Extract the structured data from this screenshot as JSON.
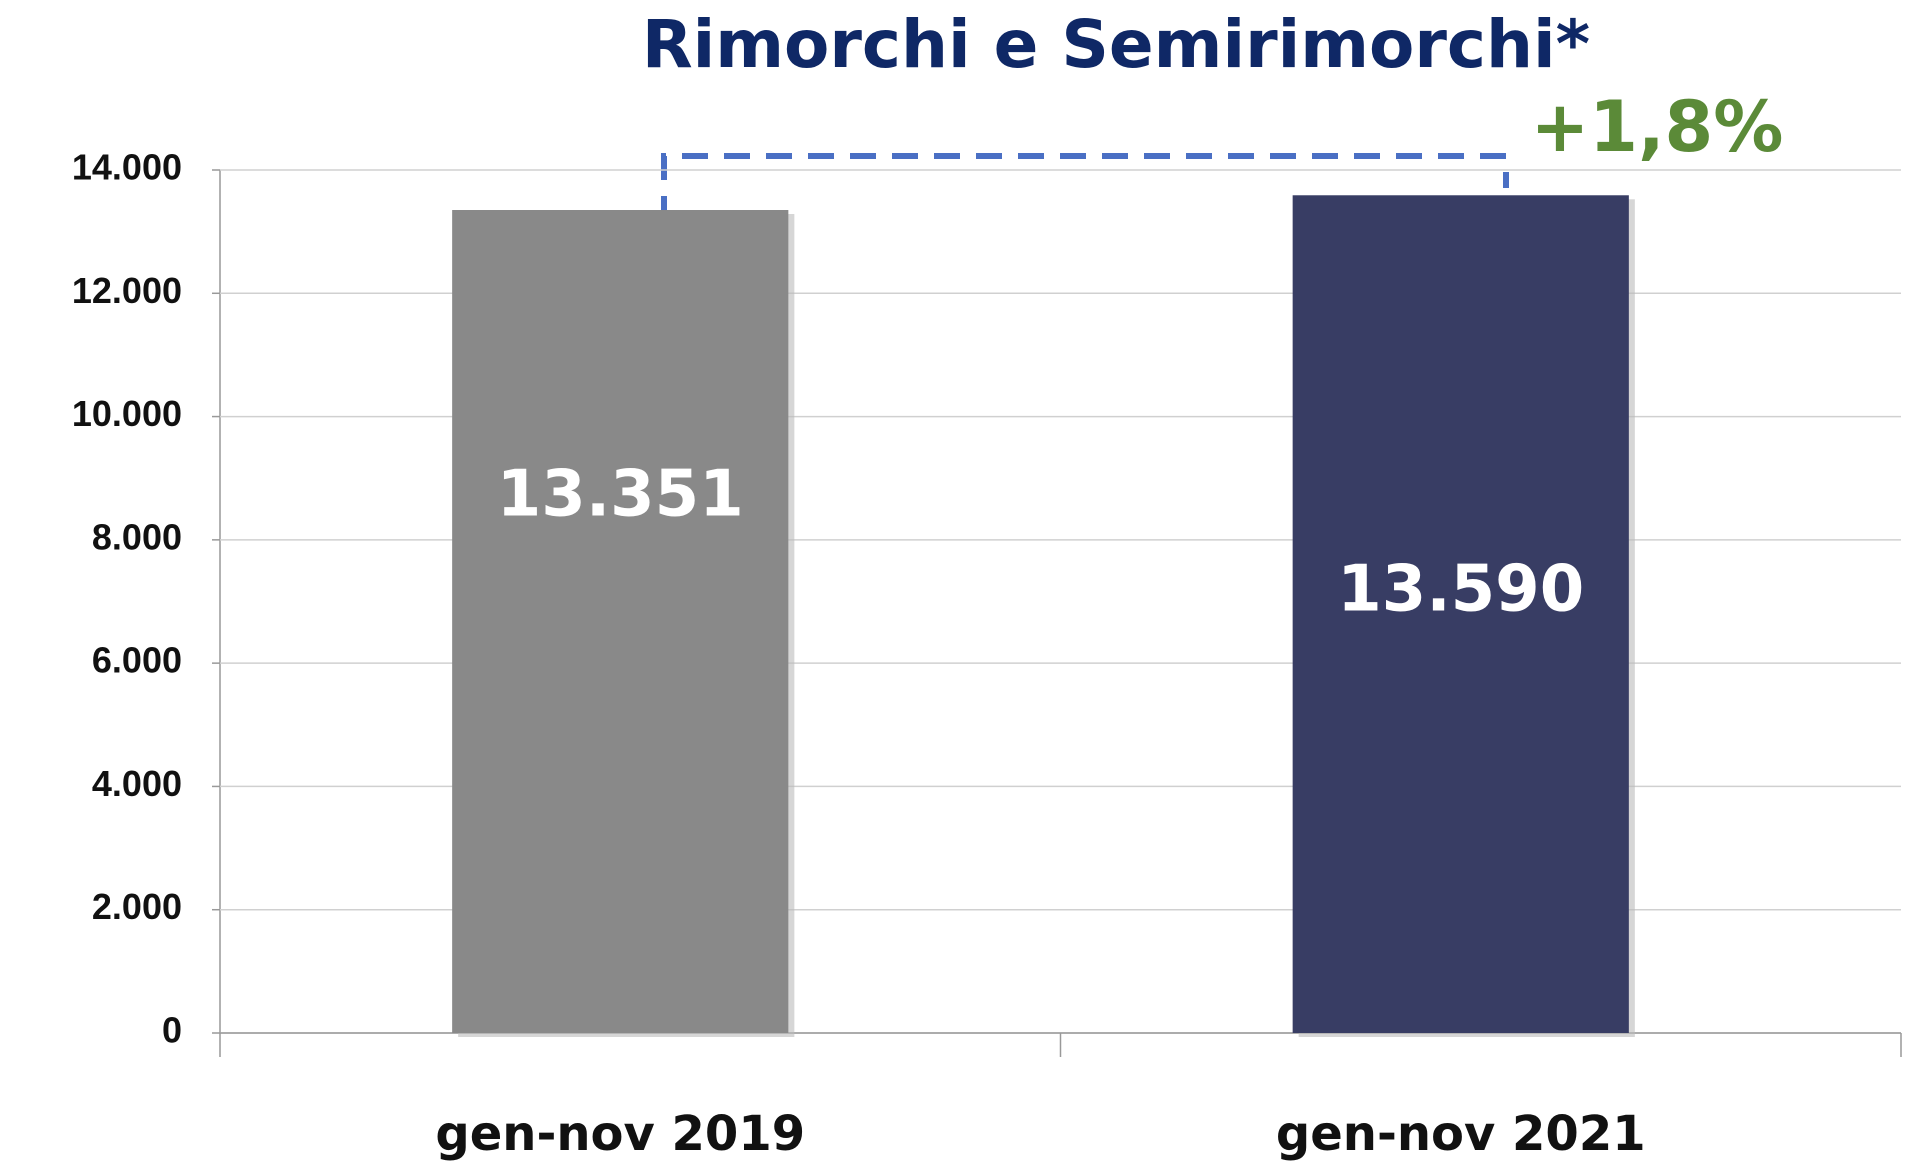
{
  "chart_data": {
    "type": "bar",
    "title": "Rimorchi e Semirimorchi*",
    "categories": [
      "gen-nov 2019",
      "gen-nov 2021"
    ],
    "values": [
      13351,
      13590
    ],
    "value_labels": [
      "13.351",
      "13.590"
    ],
    "colors": [
      "#898989",
      "#383d64"
    ],
    "annotation": "+1,8%",
    "ylim": [
      0,
      14000
    ],
    "yticks": [
      0,
      {
        "value": 2000,
        "label": "2.000"
      },
      {
        "value": 4000,
        "label": "4.000"
      },
      {
        "value": 6000,
        "label": "6.000"
      },
      {
        "value": 8000,
        "label": "8.000"
      },
      {
        "value": 10000,
        "label": "10.000"
      },
      {
        "value": 12000,
        "label": "12.000"
      },
      {
        "value": 14000,
        "label": "14.000"
      }
    ],
    "grid": true
  }
}
